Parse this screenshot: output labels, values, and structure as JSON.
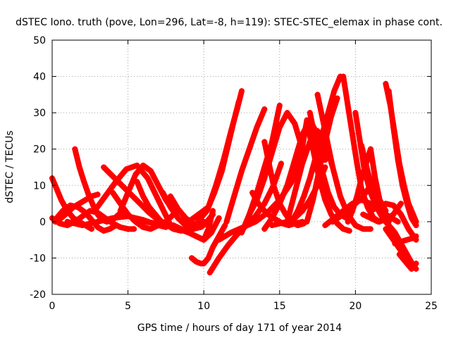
{
  "chart_data": {
    "type": "scatter",
    "title": "dSTEC Iono. truth (pove, Lon=296, Lat=-8, h=119): STEC-STEC_elemax in phase cont.",
    "xlabel": "GPS time / hours of day 171 of year 2014",
    "ylabel": "dSTEC  / TECUs",
    "xlim": [
      0,
      25
    ],
    "ylim": [
      -20,
      50
    ],
    "xticks": [
      "0",
      "5",
      "10",
      "15",
      "20",
      "25"
    ],
    "yticks": [
      "-20",
      "-10",
      "0",
      "10",
      "20",
      "30",
      "40",
      "50"
    ],
    "grid": true,
    "marker": "+",
    "color": "#ff0000",
    "series": [
      {
        "x": [
          0,
          0.3,
          0.6,
          1,
          1.4,
          1.8,
          2.2,
          2.6
        ],
        "y": [
          12,
          9,
          6,
          3,
          1,
          0,
          -1,
          -2
        ]
      },
      {
        "x": [
          0,
          0.5,
          1,
          1.5,
          2,
          2.5,
          3,
          3.5,
          4,
          4.5,
          5,
          5.4
        ],
        "y": [
          1,
          -0.5,
          -1,
          0,
          1.5,
          3,
          2.5,
          1,
          -0.5,
          -1.5,
          -2,
          -2
        ]
      },
      {
        "x": [
          0.2,
          0.6,
          1,
          1.4,
          1.8,
          2.2,
          2.6,
          3
        ],
        "y": [
          0,
          1,
          2.5,
          4,
          5,
          6,
          7,
          7.5
        ]
      },
      {
        "x": [
          0.2,
          0.7,
          1.2,
          1.7,
          2.2,
          2.6,
          3,
          3.4,
          3.8,
          4.2
        ],
        "y": [
          0.5,
          3,
          4.5,
          4,
          2.5,
          0.5,
          -1.5,
          -2.5,
          -2,
          -1
        ]
      },
      {
        "x": [
          1.5,
          1.8,
          2.1,
          2.4,
          2.7,
          3,
          3.3,
          3.6,
          4,
          4.4,
          4.7
        ],
        "y": [
          20,
          15,
          11,
          7.5,
          4.5,
          2,
          0.5,
          0,
          0.5,
          2,
          3
        ]
      },
      {
        "x": [
          1,
          2,
          3,
          4,
          5,
          6,
          7,
          7.5
        ],
        "y": [
          0,
          -1,
          0,
          1,
          1.5,
          0.5,
          -1,
          -1.5
        ]
      },
      {
        "x": [
          3.4,
          4,
          4.6,
          5.2,
          5.8,
          6.4,
          7,
          7.5,
          8,
          8.5
        ],
        "y": [
          15,
          12.5,
          10,
          7.5,
          5,
          2.5,
          0.5,
          -0.5,
          -1.5,
          -2
        ]
      },
      {
        "x": [
          4,
          4.5,
          5,
          5.5,
          6,
          6.5,
          7,
          7.5,
          8
        ],
        "y": [
          8,
          5,
          2,
          0,
          -1.5,
          -2,
          -1,
          0,
          2
        ]
      },
      {
        "x": [
          4.5,
          5,
          5.5,
          6,
          6.5,
          7,
          7.5,
          8
        ],
        "y": [
          3,
          8,
          13,
          15.5,
          14,
          10,
          6,
          3
        ]
      },
      {
        "x": [
          2.8,
          3.5,
          4.2,
          4.9,
          5.6,
          6.3,
          7,
          7.7
        ],
        "y": [
          3,
          7,
          11,
          14.5,
          15.5,
          12,
          6,
          0
        ]
      },
      {
        "x": [
          5.6,
          6,
          6.4,
          6.8,
          7.2,
          7.6,
          8,
          8.5,
          9,
          9.5,
          10
        ],
        "y": [
          11,
          7,
          4,
          2,
          0,
          -1,
          -2,
          -2.5,
          -2,
          -1,
          0
        ]
      },
      {
        "x": [
          7.3,
          7.8,
          8.3,
          8.8,
          9.3,
          9.8,
          10.3
        ],
        "y": [
          8,
          4,
          1,
          -1,
          -2,
          -1.5,
          0
        ]
      },
      {
        "x": [
          7.8,
          8.3,
          8.8,
          9.3,
          9.8,
          10.2,
          10.6
        ],
        "y": [
          7,
          3.5,
          1,
          -0.5,
          -1,
          0,
          2
        ]
      },
      {
        "x": [
          6,
          7,
          8,
          9,
          9.5,
          10,
          10.5,
          11
        ],
        "y": [
          0,
          -0.5,
          -1.5,
          -3,
          -4,
          -5,
          -3,
          1
        ]
      },
      {
        "x": [
          7,
          8,
          9,
          9.5,
          10,
          10.3,
          10.6
        ],
        "y": [
          0,
          -1,
          -3,
          -4,
          -5,
          -2,
          3
        ]
      },
      {
        "x": [
          9,
          10.3,
          10.8,
          11.3,
          11.8,
          12.2,
          12.5
        ],
        "y": [
          0,
          4,
          10,
          17,
          25,
          31,
          36
        ]
      },
      {
        "x": [
          9.6,
          10.2,
          10.7,
          11.2,
          11.6,
          12,
          12.3
        ],
        "y": [
          0,
          3,
          8,
          14,
          21,
          28,
          33
        ]
      },
      {
        "x": [
          9.2,
          9.5,
          9.8,
          10,
          10.3,
          10.6,
          11,
          11.4
        ],
        "y": [
          -10,
          -11,
          -11.5,
          -11.5,
          -10,
          -7,
          -4,
          -1
        ]
      },
      {
        "x": [
          10.4,
          11,
          11.6,
          12.2,
          12.8,
          13.4,
          14,
          14.6,
          15.1
        ],
        "y": [
          -14,
          -10,
          -6.5,
          -3.5,
          -1,
          1.5,
          5,
          10,
          16
        ]
      },
      {
        "x": [
          11,
          11.8,
          12.6,
          13.4,
          14.2,
          15,
          15.8,
          16.4,
          16.8
        ],
        "y": [
          -5,
          -3,
          -1.5,
          0,
          2.5,
          6,
          11,
          18,
          28
        ]
      },
      {
        "x": [
          11.5,
          12,
          12.5,
          13,
          13.5,
          14
        ],
        "y": [
          0,
          7,
          14,
          20,
          26,
          31
        ]
      },
      {
        "x": [
          12.5,
          13,
          13.5,
          14,
          14.5,
          15
        ],
        "y": [
          -3,
          2,
          8,
          15,
          22,
          32
        ]
      },
      {
        "x": [
          13.2,
          13.6,
          14,
          14.4,
          14.8,
          15.2,
          15.6,
          16,
          16.5
        ],
        "y": [
          8,
          5,
          3,
          1.5,
          0.5,
          -0.5,
          -1,
          -0.5,
          0
        ]
      },
      {
        "x": [
          13,
          13.5,
          14,
          14.5,
          15,
          15.5,
          16,
          16.5
        ],
        "y": [
          2,
          6,
          12,
          19,
          26,
          30,
          27,
          20
        ]
      },
      {
        "x": [
          14,
          14.5,
          15,
          15.5,
          16,
          16.5,
          17,
          17.5,
          18
        ],
        "y": [
          -2,
          1,
          5,
          10,
          17,
          24,
          28,
          24,
          17
        ]
      },
      {
        "x": [
          14,
          14.3,
          14.6,
          15,
          15.4,
          15.8,
          16.2,
          16.6
        ],
        "y": [
          22,
          16,
          10,
          5,
          2,
          0,
          -1,
          -0.5
        ]
      },
      {
        "x": [
          15.5,
          16,
          16.5,
          17,
          17.5,
          18,
          18.5
        ],
        "y": [
          0,
          8,
          16,
          22,
          25,
          22,
          15
        ]
      },
      {
        "x": [
          14.5,
          15,
          15.5,
          16,
          16.5,
          17,
          17.5,
          18
        ],
        "y": [
          -1,
          -0.5,
          0,
          1,
          3,
          6,
          10,
          15
        ]
      },
      {
        "x": [
          15.8,
          16.2,
          16.6,
          17,
          17.4,
          17.8,
          18.2,
          18.6,
          19
        ],
        "y": [
          0,
          3,
          7,
          12,
          18,
          24,
          30,
          36,
          40
        ]
      },
      {
        "x": [
          16.8,
          17.2,
          17.6,
          18,
          18.4,
          18.8
        ],
        "y": [
          0,
          6,
          14,
          22,
          29,
          34
        ]
      },
      {
        "x": [
          17.5,
          18,
          18.5,
          19,
          19.5,
          20,
          20.5,
          21
        ],
        "y": [
          35,
          25,
          15,
          7,
          2,
          -1,
          -2,
          -2
        ]
      },
      {
        "x": [
          17,
          17.4,
          17.8,
          18.2,
          18.6,
          19,
          19.4
        ],
        "y": [
          30,
          22,
          14,
          8,
          4,
          2,
          1
        ]
      },
      {
        "x": [
          16.8,
          17.2,
          17.6,
          18,
          18.4,
          18.8,
          19.2,
          19.6
        ],
        "y": [
          27,
          20,
          12,
          6,
          2,
          -0.5,
          -2,
          -2.5
        ]
      },
      {
        "x": [
          18,
          18.6,
          19.2,
          19.8,
          20.4,
          21,
          21.6
        ],
        "y": [
          -1,
          1,
          3,
          5,
          6,
          5,
          3
        ]
      },
      {
        "x": [
          18.5,
          19,
          19.5,
          20,
          20.5,
          21
        ],
        "y": [
          0,
          1.5,
          3,
          5,
          7,
          10
        ]
      },
      {
        "x": [
          19.2,
          19.5,
          19.8,
          20.1,
          20.4,
          20.8,
          21.2,
          21.6
        ],
        "y": [
          40,
          32,
          24,
          16,
          9,
          4,
          1,
          0
        ]
      },
      {
        "x": [
          19.5,
          19.8,
          20.1,
          20.4,
          20.7,
          21,
          21.3,
          21.6,
          22
        ],
        "y": [
          0,
          3,
          7,
          12,
          16,
          20,
          12,
          6,
          3
        ]
      },
      {
        "x": [
          20,
          20.3,
          20.6,
          21,
          21.4,
          21.8,
          22.2
        ],
        "y": [
          30,
          22,
          14,
          8,
          4,
          1,
          0
        ]
      },
      {
        "x": [
          20.4,
          20.8,
          21.2,
          21.6,
          22,
          22.4,
          22.8
        ],
        "y": [
          21,
          14,
          8,
          4,
          2,
          1,
          0
        ]
      },
      {
        "x": [
          20.5,
          21,
          21.5,
          22,
          22.5,
          23
        ],
        "y": [
          2,
          1,
          0,
          0.5,
          2,
          5
        ]
      },
      {
        "x": [
          22,
          22.3,
          22.6,
          22.9,
          23.2,
          23.5,
          23.8,
          24
        ],
        "y": [
          38,
          32,
          24,
          16,
          10,
          5,
          2,
          0
        ]
      },
      {
        "x": [
          22.2,
          22.5,
          22.8,
          23.1,
          23.4,
          23.7,
          24
        ],
        "y": [
          36,
          26,
          17,
          10,
          5,
          1,
          -1
        ]
      },
      {
        "x": [
          21,
          21.5,
          22,
          22.5,
          23,
          23.5,
          24
        ],
        "y": [
          3,
          4,
          5,
          4.5,
          2,
          -2,
          -5
        ]
      },
      {
        "x": [
          21.8,
          22.2,
          22.6,
          23,
          23.4,
          23.8
        ],
        "y": [
          1,
          -1,
          -3,
          -6,
          -9,
          -12
        ]
      },
      {
        "x": [
          22,
          22.5,
          23,
          23.5,
          24
        ],
        "y": [
          -2,
          -5,
          -8,
          -11,
          -13
        ]
      },
      {
        "x": [
          22.6,
          23,
          23.4,
          23.8,
          24
        ],
        "y": [
          -6,
          -5.5,
          -5,
          -4.5,
          -4
        ]
      },
      {
        "x": [
          22.9,
          23.3,
          23.7,
          24
        ],
        "y": [
          -9,
          -11,
          -13,
          -11.5
        ]
      }
    ]
  }
}
